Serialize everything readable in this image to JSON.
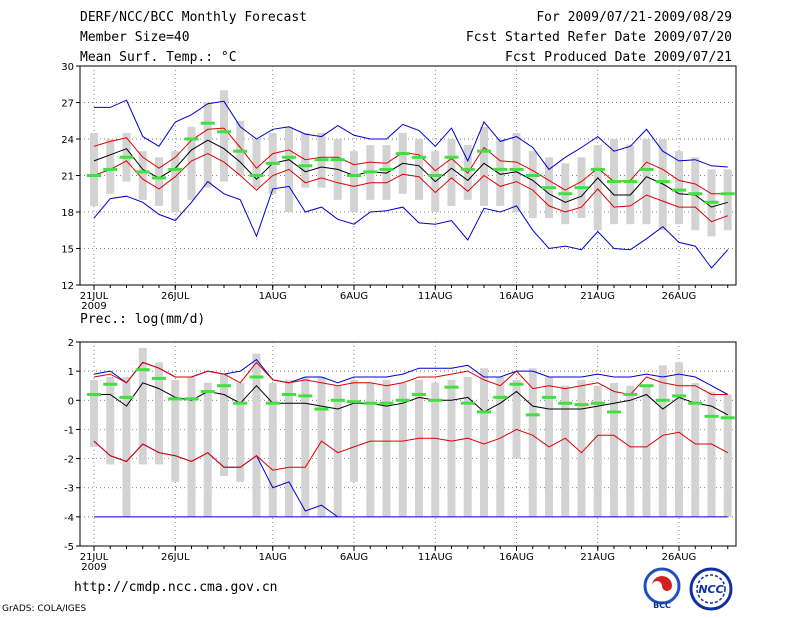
{
  "header": {
    "title": "DERF/NCC/BCC Monthly Forecast",
    "member": "Member Size=40",
    "variable": "Mean Surf. Temp.: °C",
    "period": "For 2009/07/21-2009/08/29",
    "start": "Fcst Started Refer Date 2009/07/20",
    "produced": "Fcst Produced Date 2009/07/21"
  },
  "footer": {
    "url": "http://cmdp.ncc.cma.gov.cn",
    "credit": "GrADS: COLA/IGES",
    "logo_bcc": "BCC",
    "logo_ncc": "NCC"
  },
  "colors": {
    "box": "#d3d3d3",
    "median": "#40e040",
    "mean": "#000000",
    "sd": "#e00000",
    "extreme": "#0000cc",
    "grid": "#555555"
  },
  "chart_data": [
    {
      "type": "box-ensemble",
      "title": "Mean Surf. Temp.: °C",
      "ylim": [
        12,
        30
      ],
      "yticks": [
        "12",
        "15",
        "18",
        "21",
        "24",
        "27",
        "30"
      ],
      "xticks": [
        {
          "day": 0,
          "label": "21JUL",
          "sub": "2009"
        },
        {
          "day": 5,
          "label": "26JUL"
        },
        {
          "day": 11,
          "label": "1AUG"
        },
        {
          "day": 16,
          "label": "6AUG"
        },
        {
          "day": 21,
          "label": "11AUG"
        },
        {
          "day": 26,
          "label": "16AUG"
        },
        {
          "day": 31,
          "label": "21AUG"
        },
        {
          "day": 36,
          "label": "26AUG"
        }
      ],
      "box_low": [
        18.5,
        19.5,
        20.5,
        19.0,
        18.5,
        18.0,
        19.0,
        20.0,
        20.5,
        21.0,
        20.0,
        19.5,
        18.0,
        20.0,
        20.0,
        19.0,
        18.0,
        19.0,
        19.0,
        19.5,
        19.0,
        18.0,
        18.5,
        19.0,
        18.5,
        18.5,
        18.0,
        17.5,
        17.5,
        17.0,
        17.5,
        16.5,
        17.0,
        17.0,
        17.0,
        16.5,
        17.0,
        16.5,
        16.0,
        16.5
      ],
      "box_high": [
        24.5,
        24.0,
        24.5,
        23.0,
        22.5,
        23.0,
        25.0,
        27.0,
        28.0,
        25.5,
        24.0,
        24.5,
        25.0,
        24.5,
        24.5,
        24.0,
        23.0,
        23.5,
        23.5,
        24.5,
        24.0,
        23.0,
        24.0,
        23.5,
        25.0,
        24.0,
        24.5,
        23.0,
        22.5,
        22.0,
        22.5,
        23.5,
        24.0,
        23.5,
        24.0,
        24.0,
        23.0,
        22.5,
        21.5,
        21.5
      ],
      "median": [
        21.0,
        21.5,
        22.5,
        21.3,
        20.8,
        21.5,
        24.0,
        25.3,
        24.6,
        23.0,
        21.0,
        22.0,
        22.5,
        21.8,
        22.3,
        22.3,
        21.0,
        21.3,
        21.5,
        22.8,
        22.5,
        21.0,
        22.5,
        21.5,
        23.0,
        21.5,
        21.5,
        21.0,
        20.0,
        19.5,
        20.0,
        21.5,
        20.5,
        20.5,
        21.5,
        20.5,
        19.8,
        19.5,
        18.8,
        19.5
      ],
      "mean": [
        22.2,
        22.7,
        23.2,
        21.5,
        20.8,
        21.6,
        23.1,
        23.9,
        23.2,
        22.1,
        20.7,
        22.0,
        22.3,
        21.3,
        21.7,
        21.5,
        21.0,
        21.3,
        21.2,
        22.0,
        21.8,
        20.5,
        21.6,
        20.6,
        22.0,
        21.1,
        21.3,
        20.6,
        19.5,
        18.8,
        19.3,
        20.8,
        19.4,
        19.4,
        20.9,
        20.3,
        19.5,
        19.4,
        18.4,
        18.8
      ],
      "sd_high": [
        23.4,
        23.8,
        24.1,
        22.5,
        21.6,
        22.5,
        23.9,
        24.8,
        24.9,
        23.3,
        21.6,
        22.8,
        23.1,
        22.3,
        22.5,
        22.5,
        21.9,
        22.1,
        22.0,
        22.9,
        22.7,
        21.4,
        22.4,
        21.2,
        23.3,
        22.2,
        22.1,
        21.4,
        20.6,
        19.8,
        20.5,
        21.6,
        20.5,
        20.6,
        22.1,
        21.5,
        20.6,
        20.3,
        19.5,
        19.5
      ],
      "sd_low": [
        21.0,
        21.5,
        22.2,
        20.7,
        19.9,
        20.9,
        22.2,
        22.8,
        22.1,
        21.0,
        19.8,
        21.0,
        21.5,
        20.4,
        20.8,
        20.4,
        20.1,
        20.4,
        20.4,
        21.1,
        20.9,
        19.6,
        20.8,
        19.7,
        21.0,
        20.1,
        20.5,
        19.8,
        18.5,
        18.0,
        18.4,
        19.9,
        18.4,
        18.5,
        19.4,
        18.9,
        18.4,
        18.4,
        17.2,
        17.7
      ],
      "max": [
        26.6,
        26.6,
        27.2,
        24.2,
        23.4,
        25.4,
        26.0,
        26.9,
        27.1,
        25.0,
        24.0,
        24.8,
        25.0,
        24.4,
        24.2,
        25.1,
        24.3,
        24.0,
        24.0,
        25.2,
        24.7,
        23.4,
        24.9,
        22.2,
        25.4,
        23.8,
        24.2,
        23.3,
        21.5,
        22.5,
        23.3,
        24.2,
        23.0,
        23.4,
        24.8,
        23.0,
        22.2,
        22.3,
        21.8,
        21.7
      ],
      "min": [
        17.5,
        19.1,
        19.3,
        18.8,
        17.8,
        17.3,
        18.8,
        20.5,
        19.5,
        19.0,
        16.0,
        19.9,
        20.1,
        18.0,
        18.4,
        17.4,
        17.0,
        18.0,
        18.1,
        18.4,
        17.1,
        17.0,
        17.3,
        15.7,
        18.3,
        18.0,
        18.5,
        16.5,
        15.0,
        15.2,
        14.9,
        16.4,
        15.0,
        14.9,
        15.8,
        16.8,
        15.5,
        15.2,
        13.4,
        14.9
      ]
    },
    {
      "type": "box-ensemble",
      "title": "Prec.: log(mm/d)",
      "ylim": [
        -5,
        2
      ],
      "yticks": [
        "-5",
        "-4",
        "-3",
        "-2",
        "-1",
        "0",
        "1",
        "2"
      ],
      "xticks": [
        {
          "day": 0,
          "label": "21JUL",
          "sub": "2009"
        },
        {
          "day": 5,
          "label": "26JUL"
        },
        {
          "day": 11,
          "label": "1AUG"
        },
        {
          "day": 16,
          "label": "6AUG"
        },
        {
          "day": 21,
          "label": "11AUG"
        },
        {
          "day": 26,
          "label": "16AUG"
        },
        {
          "day": 31,
          "label": "21AUG"
        },
        {
          "day": 36,
          "label": "26AUG"
        }
      ],
      "box_low": [
        -1.6,
        -2.2,
        -4.0,
        -2.2,
        -2.2,
        -2.8,
        -4.0,
        -4.0,
        -2.6,
        -2.8,
        -4.0,
        -4.0,
        -4.0,
        -4.0,
        -4.0,
        -4.0,
        -2.8,
        -4.0,
        -4.0,
        -4.0,
        -4.0,
        -4.0,
        -4.0,
        -4.0,
        -4.0,
        -4.0,
        -2.0,
        -4.0,
        -4.0,
        -4.0,
        -4.0,
        -4.0,
        -4.0,
        -4.0,
        -4.0,
        -4.0,
        -4.0,
        -4.0,
        -4.0,
        -4.0
      ],
      "box_high": [
        0.7,
        0.8,
        0.8,
        1.8,
        1.3,
        0.7,
        0.8,
        0.6,
        0.9,
        0.6,
        1.6,
        0.6,
        0.7,
        0.8,
        0.8,
        0.5,
        0.7,
        0.6,
        0.7,
        0.6,
        0.7,
        0.6,
        0.7,
        0.8,
        1.1,
        0.8,
        0.7,
        1.1,
        0.8,
        0.5,
        0.7,
        0.5,
        0.6,
        0.5,
        0.5,
        1.2,
        1.3,
        0.6,
        0.3,
        0.2
      ],
      "median": [
        0.2,
        0.55,
        0.1,
        1.05,
        0.75,
        0.05,
        0.05,
        0.3,
        0.5,
        -0.1,
        0.8,
        -0.1,
        0.2,
        0.15,
        -0.3,
        0.0,
        -0.05,
        -0.1,
        -0.1,
        0.0,
        0.2,
        0.0,
        0.45,
        -0.1,
        -0.4,
        0.1,
        0.55,
        -0.5,
        0.1,
        -0.1,
        -0.15,
        -0.1,
        -0.4,
        0.2,
        0.5,
        0.0,
        0.15,
        -0.1,
        -0.55,
        -0.6
      ],
      "mean": [
        0.2,
        0.2,
        -0.2,
        0.6,
        0.4,
        0.1,
        0.0,
        0.3,
        0.2,
        -0.1,
        0.5,
        -0.1,
        -0.1,
        -0.1,
        -0.2,
        -0.3,
        -0.1,
        -0.1,
        -0.2,
        -0.1,
        0.1,
        0.0,
        0.0,
        0.1,
        -0.4,
        -0.1,
        0.3,
        -0.2,
        -0.3,
        -0.3,
        -0.3,
        -0.2,
        -0.1,
        0.0,
        0.2,
        -0.3,
        0.1,
        -0.1,
        -0.2,
        -0.5
      ],
      "sd_high": [
        0.8,
        0.9,
        0.6,
        1.3,
        1.1,
        0.8,
        0.8,
        1.0,
        0.9,
        0.6,
        1.3,
        0.7,
        0.6,
        0.7,
        0.6,
        0.5,
        0.6,
        0.6,
        0.5,
        0.6,
        0.8,
        0.8,
        0.9,
        1.0,
        0.7,
        0.5,
        1.0,
        0.4,
        0.5,
        0.4,
        0.5,
        0.6,
        0.3,
        0.2,
        0.8,
        0.6,
        0.5,
        0.5,
        0.2,
        0.2
      ],
      "sd_low": [
        -1.4,
        -1.9,
        -2.1,
        -1.5,
        -1.8,
        -1.9,
        -2.1,
        -1.8,
        -2.3,
        -2.3,
        -1.9,
        -2.4,
        -2.3,
        -2.3,
        -1.4,
        -1.8,
        -1.6,
        -1.4,
        -1.4,
        -1.4,
        -1.3,
        -1.3,
        -1.4,
        -1.3,
        -1.5,
        -1.3,
        -1.0,
        -1.2,
        -1.6,
        -1.3,
        -1.8,
        -1.2,
        -1.2,
        -1.6,
        -1.6,
        -1.2,
        -1.1,
        -1.5,
        -1.5,
        -1.8
      ],
      "max": [
        0.9,
        1.0,
        0.6,
        1.3,
        1.1,
        0.8,
        0.8,
        1.0,
        0.9,
        1.0,
        1.4,
        0.7,
        0.6,
        0.8,
        0.8,
        0.6,
        0.8,
        0.8,
        0.8,
        0.9,
        1.1,
        1.1,
        1.1,
        1.2,
        0.8,
        0.8,
        1.0,
        1.0,
        0.8,
        0.8,
        0.8,
        0.9,
        0.8,
        0.8,
        0.9,
        0.8,
        0.9,
        0.8,
        0.5,
        0.2
      ],
      "min": [
        -1.4,
        -1.9,
        -2.1,
        -1.5,
        -1.8,
        -1.9,
        -2.1,
        -1.8,
        -2.3,
        -2.3,
        -1.9,
        -3.0,
        -2.8,
        -3.8,
        -3.6,
        -4.0,
        null,
        null,
        null,
        null,
        null,
        null,
        null,
        null,
        null,
        null,
        null,
        null,
        null,
        null,
        null,
        null,
        null,
        null,
        null,
        null,
        null,
        null,
        null,
        null
      ],
      "floor_line": -4.0
    }
  ]
}
